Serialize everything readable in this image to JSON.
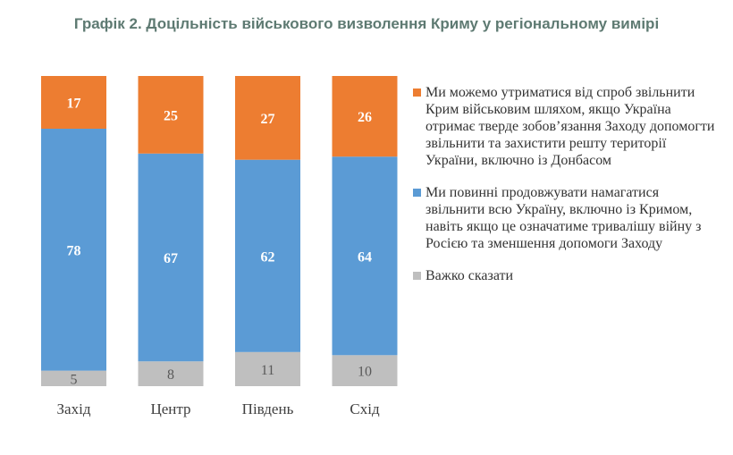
{
  "title": "Графік 2. Доцільність військового визволення Криму у регіональному вимірі",
  "chart_data": {
    "type": "bar",
    "stacked": true,
    "categories": [
      "Захід",
      "Центр",
      "Південь",
      "Схід"
    ],
    "series": [
      {
        "name": "Важко сказати",
        "color": "#bfbfbf",
        "label_color": "#595959",
        "values": [
          5,
          8,
          11,
          10
        ]
      },
      {
        "name": "Ми повинні продовжувати намагатися звільнити всю Україну, включно із Кримом, навіть якщо це означатиме тривалішу війну з Росією та зменшення допомоги Заходу",
        "color": "#5b9bd5",
        "label_color": "#ffffff",
        "values": [
          78,
          67,
          62,
          64
        ]
      },
      {
        "name": "Ми можемо утриматися від спроб звільнити Крим військовим шляхом, якщо Україна отримає тверде зобов’язання Заходу допомогти звільнити та захистити решту території України, включно із Донбасом",
        "color": "#ed7d31",
        "label_color": "#ffffff",
        "values": [
          17,
          25,
          27,
          26
        ]
      }
    ],
    "ylim": [
      0,
      100
    ],
    "grid": false,
    "legend_position": "right"
  }
}
